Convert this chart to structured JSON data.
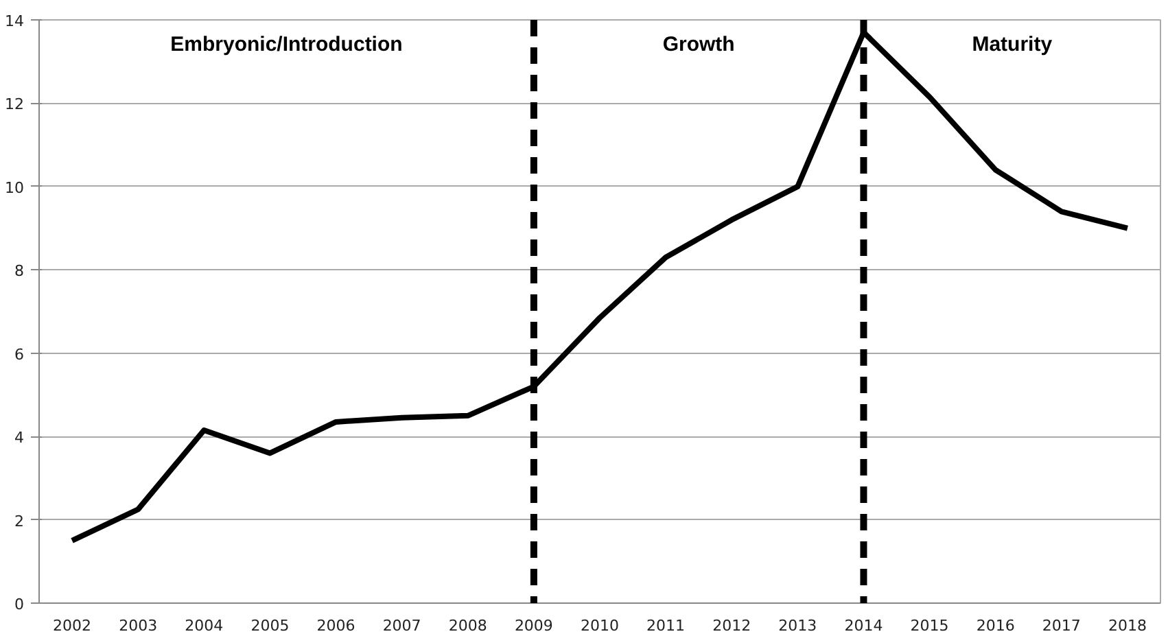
{
  "chart_data": {
    "type": "line",
    "categories": [
      "2002",
      "2003",
      "2004",
      "2005",
      "2006",
      "2007",
      "2008",
      "2009",
      "2010",
      "2011",
      "2012",
      "2013",
      "2014",
      "2015",
      "2016",
      "2017",
      "2018"
    ],
    "series": [
      {
        "color": "#000000",
        "values": [
          1.5,
          2.25,
          4.15,
          3.6,
          4.35,
          4.45,
          4.5,
          5.2,
          6.85,
          8.3,
          9.2,
          10,
          13.7,
          12.15,
          10.4,
          9.4,
          9.0
        ]
      }
    ],
    "ylim": [
      0,
      14
    ],
    "yticks": [
      0,
      2,
      4,
      6,
      8,
      10,
      12,
      14
    ],
    "grid": "y",
    "marker": "none",
    "line_style": "solid",
    "ref_lines": [
      {
        "axis": "x",
        "value": "2009",
        "color": "#000000",
        "line_style": "dashed"
      },
      {
        "axis": "x",
        "value": "2014",
        "color": "#000000",
        "line_style": "dashed"
      }
    ],
    "annotations": [
      "Embryonic/Introduction",
      "Growth",
      "Maturity"
    ]
  }
}
